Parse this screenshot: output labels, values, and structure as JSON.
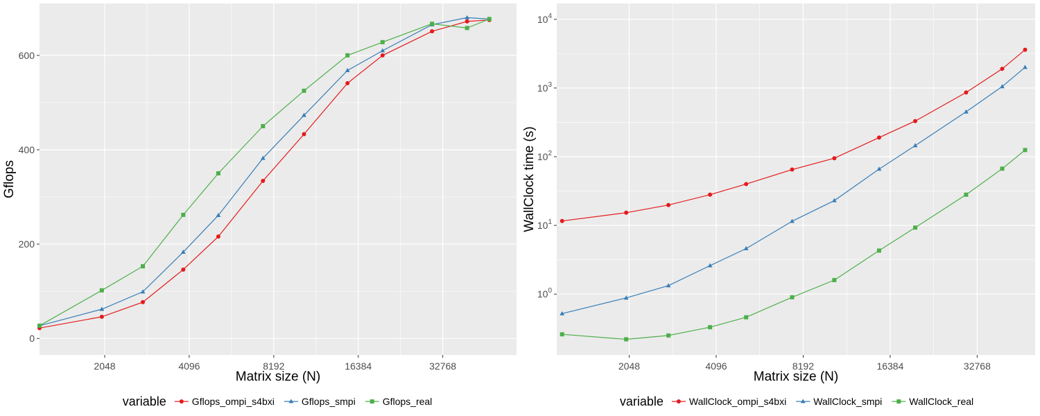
{
  "chart_data": [
    {
      "type": "line",
      "xlabel": "Matrix size (N)",
      "ylabel": "Gflops",
      "x_scale": "log2",
      "y_scale": "linear",
      "x_ticks": [
        2048,
        4096,
        8192,
        16384,
        32768
      ],
      "y_ticks": [
        0,
        200,
        400,
        600
      ],
      "xlim": [
        1200,
        60000
      ],
      "ylim": [
        -35,
        710
      ],
      "grid": true,
      "legend_title": "variable",
      "legend_position": "bottom",
      "x": [
        1200,
        2000,
        2800,
        3900,
        5200,
        7500,
        10500,
        15000,
        20000,
        30000,
        40000,
        48000
      ],
      "series": [
        {
          "name": "Gflops_ompi_s4bxi",
          "color": "#e41a1c",
          "marker": "circle",
          "values": [
            22,
            46,
            77,
            146,
            216,
            334,
            433,
            541,
            600,
            651,
            672,
            675
          ]
        },
        {
          "name": "Gflops_smpi",
          "color": "#377eb8",
          "marker": "triangle",
          "values": [
            27,
            62,
            99,
            183,
            261,
            382,
            473,
            568,
            610,
            665,
            680,
            677
          ]
        },
        {
          "name": "Gflops_real",
          "color": "#4daf4a",
          "marker": "square",
          "values": [
            27,
            102,
            153,
            262,
            350,
            450,
            525,
            600,
            628,
            667,
            658,
            677
          ]
        }
      ]
    },
    {
      "type": "line",
      "xlabel": "Matrix size (N)",
      "ylabel": "WallClock time (s)",
      "x_scale": "log2",
      "y_scale": "log10",
      "x_ticks": [
        2048,
        4096,
        8192,
        16384,
        32768
      ],
      "y_ticks": [
        1,
        10,
        100,
        1000,
        10000
      ],
      "y_tick_labels": [
        {
          "base": "10",
          "exp": "0"
        },
        {
          "base": "10",
          "exp": "1"
        },
        {
          "base": "10",
          "exp": "2"
        },
        {
          "base": "10",
          "exp": "3"
        },
        {
          "base": "10",
          "exp": "4"
        }
      ],
      "xlim": [
        1150,
        52000
      ],
      "ylim": [
        0.13,
        17000
      ],
      "grid": true,
      "legend_title": "variable",
      "legend_position": "bottom",
      "x": [
        1200,
        2000,
        2800,
        3900,
        5200,
        7500,
        10500,
        15000,
        20000,
        30000,
        40000,
        48000
      ],
      "series": [
        {
          "name": "WallClock_ompi_s4bxi",
          "color": "#e41a1c",
          "marker": "circle",
          "values": [
            11.6,
            15.3,
            19.8,
            28,
            40,
            65,
            95,
            190,
            330,
            860,
            1900,
            3600
          ]
        },
        {
          "name": "WallClock_smpi",
          "color": "#377eb8",
          "marker": "triangle",
          "values": [
            0.52,
            0.88,
            1.33,
            2.6,
            4.6,
            11.5,
            23,
            66,
            145,
            450,
            1050,
            2000
          ]
        },
        {
          "name": "WallClock_real",
          "color": "#4daf4a",
          "marker": "square",
          "values": [
            0.26,
            0.22,
            0.25,
            0.33,
            0.46,
            0.9,
            1.6,
            4.3,
            9.3,
            28,
            67,
            125
          ]
        }
      ]
    }
  ]
}
